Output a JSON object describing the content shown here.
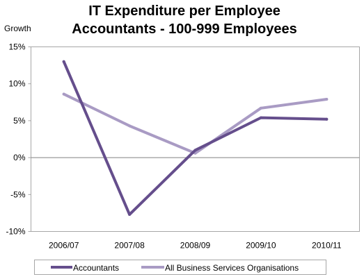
{
  "chart_data": {
    "type": "line",
    "title": [
      "IT Expenditure per Employee",
      "Accountants - 100-999 Employees"
    ],
    "ylabel": "Growth",
    "xlabel": "",
    "categories": [
      "2006/07",
      "2007/08",
      "2008/09",
      "2009/10",
      "2010/11"
    ],
    "ylim": [
      -10,
      15
    ],
    "yticks": [
      15,
      10,
      5,
      0,
      -5,
      -10
    ],
    "y_tick_suffix": "%",
    "grid": false,
    "legend_position": "bottom",
    "series": [
      {
        "name": "Accountants",
        "values": [
          13.0,
          -7.7,
          1.0,
          5.4,
          5.2
        ],
        "color": "#654e8c"
      },
      {
        "name": "All Business Services Organisations",
        "values": [
          8.6,
          4.3,
          0.6,
          6.7,
          7.9
        ],
        "color": "#a99bc4"
      }
    ]
  }
}
